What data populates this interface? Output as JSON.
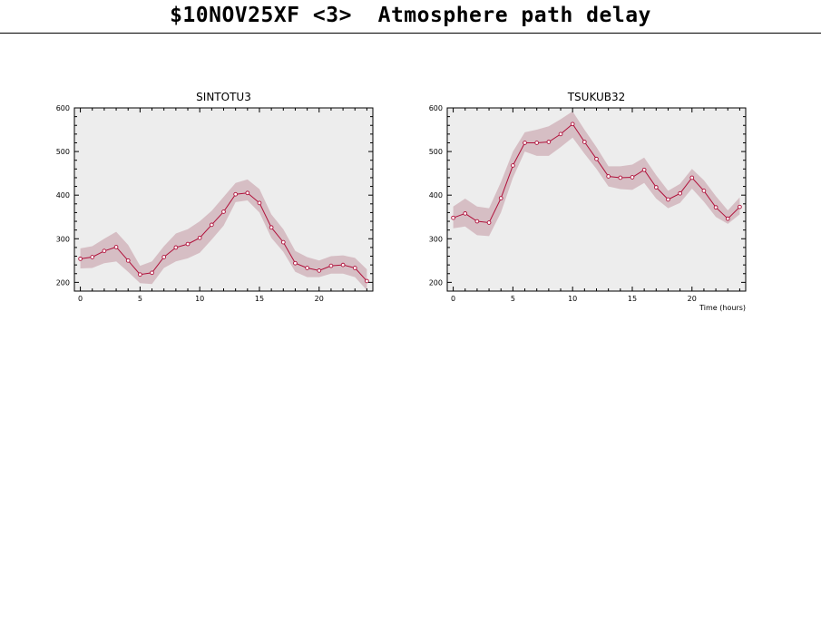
{
  "title": "$10NOV25XF <3>  Atmosphere path delay",
  "colors": {
    "line": "#b0103a",
    "band": "#d6bec4",
    "plot_bg": "#ededed",
    "frame": "#000000"
  },
  "chart_data": [
    {
      "type": "line",
      "title": "SINTOTU3",
      "xlabel": "",
      "ylabel": "",
      "xlim": [
        -0.5,
        24.5
      ],
      "ylim": [
        180,
        600
      ],
      "xticks": [
        0,
        5,
        10,
        15,
        20
      ],
      "yticks": [
        200,
        300,
        400,
        500,
        600
      ],
      "grid": false,
      "x": [
        0,
        1,
        2,
        3,
        4,
        5,
        6,
        7,
        8,
        9,
        10,
        11,
        12,
        13,
        14,
        15,
        16,
        17,
        18,
        19,
        20,
        21,
        22,
        23,
        24
      ],
      "series": [
        {
          "values": [
            254,
            258,
            272,
            281,
            250,
            218,
            222,
            258,
            280,
            288,
            302,
            332,
            362,
            402,
            405,
            382,
            326,
            292,
            244,
            233,
            227,
            238,
            240,
            233,
            203
          ],
          "band_low": [
            232,
            233,
            244,
            248,
            224,
            198,
            196,
            233,
            248,
            255,
            268,
            298,
            330,
            384,
            388,
            360,
            302,
            270,
            224,
            212,
            212,
            220,
            220,
            212,
            182
          ],
          "band_high": [
            278,
            283,
            300,
            316,
            286,
            238,
            248,
            283,
            312,
            322,
            340,
            364,
            396,
            428,
            436,
            414,
            356,
            322,
            272,
            258,
            250,
            260,
            262,
            256,
            230
          ]
        }
      ]
    },
    {
      "type": "line",
      "title": "TSUKUB32",
      "xlabel": "Time (hours)",
      "ylabel": "",
      "xlim": [
        -0.5,
        24.5
      ],
      "ylim": [
        180,
        600
      ],
      "xticks": [
        0,
        5,
        10,
        15,
        20
      ],
      "yticks": [
        200,
        300,
        400,
        500,
        600
      ],
      "grid": false,
      "x": [
        0,
        1,
        2,
        3,
        4,
        5,
        6,
        7,
        8,
        9,
        10,
        11,
        12,
        13,
        14,
        15,
        16,
        17,
        18,
        19,
        20,
        21,
        22,
        23,
        24
      ],
      "series": [
        {
          "values": [
            348,
            358,
            340,
            337,
            393,
            468,
            520,
            520,
            522,
            540,
            563,
            522,
            483,
            443,
            440,
            441,
            458,
            418,
            390,
            404,
            440,
            410,
            372,
            346,
            373
          ],
          "band_low": [
            324,
            328,
            308,
            306,
            360,
            440,
            500,
            490,
            490,
            510,
            532,
            495,
            460,
            420,
            414,
            412,
            428,
            392,
            370,
            382,
            415,
            385,
            350,
            334,
            356
          ],
          "band_high": [
            374,
            392,
            374,
            370,
            430,
            500,
            544,
            550,
            558,
            574,
            592,
            550,
            510,
            466,
            466,
            470,
            486,
            446,
            410,
            426,
            460,
            434,
            398,
            365,
            395
          ]
        }
      ]
    }
  ]
}
